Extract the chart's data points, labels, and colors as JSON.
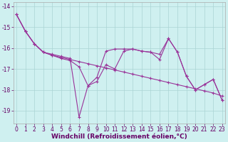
{
  "x": [
    0,
    1,
    2,
    3,
    4,
    5,
    6,
    7,
    8,
    9,
    10,
    11,
    12,
    13,
    14,
    15,
    16,
    17,
    18,
    19,
    20,
    21,
    22,
    23
  ],
  "line1": [
    -14.4,
    -15.2,
    -15.8,
    -16.2,
    -16.35,
    -16.45,
    -16.55,
    -16.65,
    -16.75,
    -16.85,
    -16.95,
    -17.05,
    -17.15,
    -17.25,
    -17.35,
    -17.45,
    -17.55,
    -17.65,
    -17.75,
    -17.85,
    -17.95,
    -18.05,
    -18.15,
    -18.3
  ],
  "line2": [
    -14.4,
    -15.2,
    -15.8,
    -16.2,
    -16.3,
    -16.4,
    -16.5,
    -19.3,
    -17.8,
    -17.4,
    -16.15,
    -16.05,
    -16.05,
    -16.05,
    -16.15,
    -16.2,
    -16.3,
    -15.55,
    -16.2,
    -17.35,
    -18.0,
    -17.75,
    -17.5,
    -18.5
  ],
  "line3": [
    -14.4,
    -15.2,
    -15.8,
    -16.2,
    -16.35,
    -16.5,
    -16.6,
    -16.9,
    -17.8,
    -17.6,
    -16.8,
    -17.0,
    -16.15,
    -16.05,
    -16.15,
    -16.2,
    -16.55,
    -15.55,
    -16.2,
    -17.35,
    -18.0,
    -17.75,
    -17.5,
    -18.5
  ],
  "line_color": "#993399",
  "bg_color": "#cff0f0",
  "grid_color": "#aad4d4",
  "xlabel_text": "Windchill (Refroidissement éolien,°C)",
  "yticks": [
    -14,
    -15,
    -16,
    -17,
    -18,
    -19
  ],
  "xlim": [
    -0.3,
    23.3
  ],
  "ylim": [
    -19.6,
    -13.8
  ],
  "xlabel_fontsize": 6.5,
  "tick_fontsize": 5.5,
  "line_width": 0.8,
  "marker_size": 2.5
}
